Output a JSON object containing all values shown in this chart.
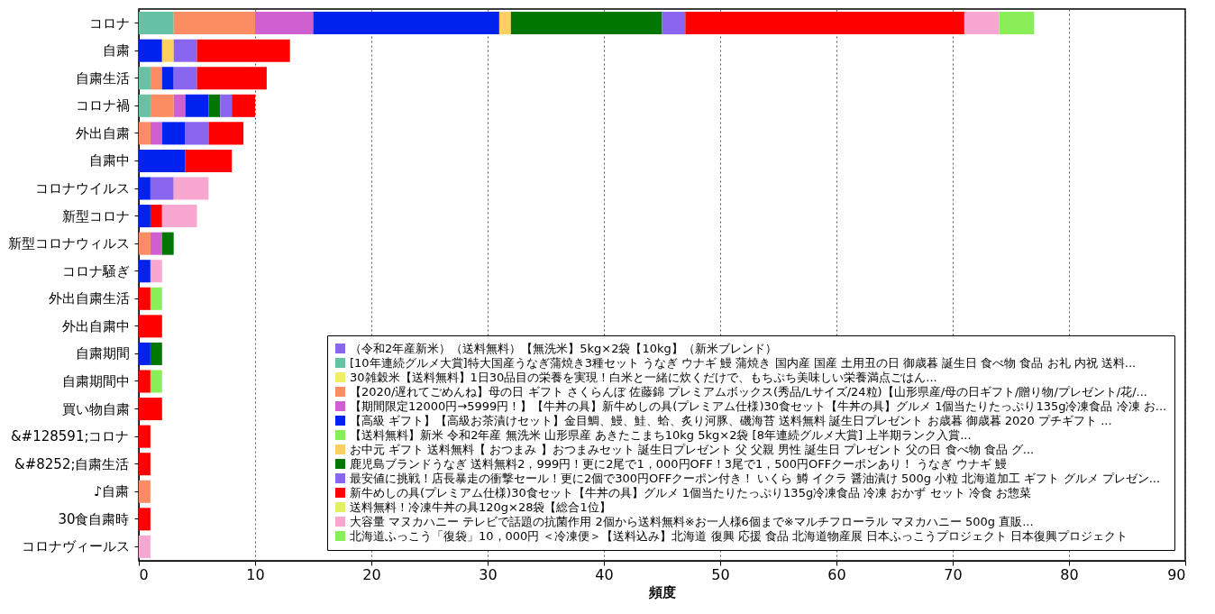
{
  "chart_data": {
    "type": "bar",
    "orientation": "horizontal",
    "stacked": true,
    "xlabel": "頻度",
    "xlim": [
      0,
      90
    ],
    "xticks": [
      0,
      10,
      20,
      30,
      40,
      50,
      60,
      70,
      80,
      90
    ],
    "grid": "x",
    "legend": "bottom right",
    "categories": [
      "コロナ",
      "自粛",
      "自粛生活",
      "コロナ禍",
      "外出自粛",
      "自粛中",
      "コロナウイルス",
      "新型コロナ",
      "新型コロナウィルス",
      "コロナ騒ぎ",
      "外出自粛生活",
      "外出自粛中",
      "自粛期間",
      "自粛期間中",
      "買い物自粛",
      "&#128591;コロナ",
      "&#8252;自粛生活",
      "♪自粛",
      "30食自粛時",
      "コロナヴィールス"
    ],
    "series": [
      {
        "name": "（令和2年産新米）（送料無料）【無洗米】5kg×2袋【10kg】（新米ブレンド）",
        "color": "#8866ee",
        "values": [
          0,
          0,
          0,
          0,
          0,
          0,
          0,
          0,
          0,
          0,
          0,
          0,
          0,
          0,
          0,
          0,
          0,
          0,
          0,
          0
        ]
      },
      {
        "name": "[10年連続グルメ大賞]特大国産うなぎ蒲焼き3種セット うなぎ ウナギ 鰻 蒲焼き 国内産 国産 土用丑の日 御歳暮 誕生日 食べ物 食品 お礼 内祝 送料...",
        "color": "#66c2a5",
        "values": [
          3,
          0,
          1,
          1,
          0,
          0,
          0,
          0,
          0,
          0,
          0,
          0,
          0,
          0,
          0,
          0,
          0,
          0,
          0,
          0
        ]
      },
      {
        "name": "30雑穀米【送料無料】1日30品目の栄養を実現！白米と一緒に炊くだけで、もちぷち美味しい栄養満点ごはん...",
        "color": "#eef060",
        "values": [
          0,
          0,
          0,
          0,
          0,
          0,
          0,
          0,
          0,
          0,
          0,
          0,
          0,
          0,
          0,
          0,
          0,
          0,
          0,
          0
        ]
      },
      {
        "name": "【2020/遅れてごめんね】母の日 ギフト さくらんぼ 佐藤錦 プレミアムボックス(秀品/Lサイズ/24粒)【山形県産/母の日ギフト/贈り物/プレゼント/花/...",
        "color": "#fc8d62",
        "values": [
          7,
          0,
          1,
          2,
          1,
          0,
          0,
          0,
          1,
          0,
          0,
          0,
          0,
          0,
          0,
          0,
          0,
          1,
          0,
          0
        ]
      },
      {
        "name": "【期間限定12000円→5999円！】【牛丼の具】新牛めしの具(プレミアム仕様)30食セット【牛丼の具】グルメ 1個当たりたっぷり135g冷凍食品 冷凍 お...",
        "color": "#d060d0",
        "values": [
          5,
          0,
          0,
          1,
          1,
          0,
          0,
          0,
          1,
          0,
          0,
          0,
          0,
          0,
          0,
          0,
          0,
          0,
          0,
          0
        ]
      },
      {
        "name": "【高級 ギフト】【高級お茶漬けセット】金目鯛、鰻、鮭、蛤、炙り河豚、磯海苔 送料無料 誕生日プレゼント お歳暮 御歳暮 2020 プチギフト ...",
        "color": "#0022ee",
        "values": [
          16,
          2,
          1,
          2,
          2,
          4,
          1,
          1,
          0,
          1,
          0,
          0,
          1,
          0,
          0,
          0,
          0,
          0,
          0,
          0
        ]
      },
      {
        "name": "【送料無料】新米 令和2年産 無洗米 山形県産 あきたこまち10kg 5kg×2袋 [8年連続グルメ大賞] 上半期ランク入賞...",
        "color": "#88ee55",
        "values": [
          0,
          0,
          0,
          0,
          0,
          0,
          0,
          0,
          0,
          0,
          0,
          0,
          0,
          0,
          0,
          0,
          0,
          0,
          0,
          0
        ]
      },
      {
        "name": "お中元 ギフト 送料無料【 おつまみ 】おつまみセット 誕生日プレゼント 父 父親 男性 誕生日 プレゼント 父の日 食べ物 食品 グ...",
        "color": "#ffd060",
        "values": [
          1,
          1,
          0,
          0,
          0,
          0,
          0,
          0,
          0,
          0,
          0,
          0,
          0,
          0,
          0,
          0,
          0,
          0,
          0,
          0
        ]
      },
      {
        "name": "鹿児島ブランドうなぎ 送料無料2，999円！更に2尾で1，000円OFF！3尾で1，500円OFFクーポンあり！ うなぎ ウナギ 鰻",
        "color": "#007700",
        "values": [
          13,
          0,
          0,
          1,
          0,
          0,
          0,
          0,
          1,
          0,
          0,
          0,
          1,
          0,
          0,
          0,
          0,
          0,
          0,
          0
        ]
      },
      {
        "name": "最安値に挑戦！店長暴走の衝撃セール！更に2個で300円OFFクーポン付き！ いくら 鱒 イクラ 醤油漬け 500g 小粒 北海道加工 ギフト グルメ プレゼン...",
        "color": "#8a66f0",
        "values": [
          2,
          2,
          2,
          1,
          2,
          0,
          2,
          0,
          0,
          0,
          0,
          0,
          0,
          0,
          0,
          0,
          0,
          0,
          0,
          0
        ]
      },
      {
        "name": "新牛めしの具(プレミアム仕様)30食セット【牛丼の具】グルメ 1個当たりたっぷり135g冷凍食品 冷凍 おかず セット 冷食 お惣菜",
        "color": "#ff0000",
        "values": [
          24,
          8,
          6,
          2,
          3,
          4,
          0,
          1,
          0,
          0,
          1,
          2,
          0,
          1,
          2,
          1,
          1,
          0,
          1,
          0
        ]
      },
      {
        "name": "送料無料！冷凍牛丼の具120g×28袋【総合1位】",
        "color": "#e0f060",
        "values": [
          0,
          0,
          0,
          0,
          0,
          0,
          0,
          0,
          0,
          0,
          0,
          0,
          0,
          0,
          0,
          0,
          0,
          0,
          0,
          0
        ]
      },
      {
        "name": "大容量 マヌカハニー テレビで話題の抗菌作用 2個から送料無料※お一人様6個まで※マルチフローラル マヌカハニー 500g 直販...",
        "color": "#f8a8d0",
        "values": [
          3,
          0,
          0,
          0,
          0,
          0,
          3,
          3,
          0,
          1,
          0,
          0,
          0,
          0,
          0,
          0,
          0,
          0,
          0,
          1
        ]
      },
      {
        "name": "北海道ふっこう「復袋」10，000円 ＜冷凍便＞【送料込み】北海道 復興 応援 食品 北海道物産展 日本ふっこうプロジェクト 日本復興プロジェクト",
        "color": "#8aee58",
        "values": [
          3,
          0,
          0,
          0,
          0,
          0,
          0,
          0,
          0,
          0,
          1,
          0,
          0,
          1,
          0,
          0,
          0,
          0,
          0,
          0
        ]
      }
    ]
  }
}
